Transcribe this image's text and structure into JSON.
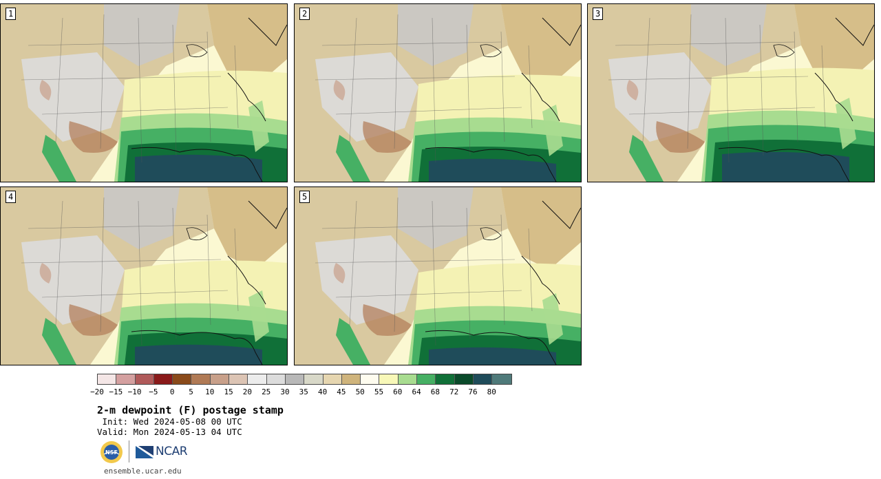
{
  "panels": [
    {
      "number": "1"
    },
    {
      "number": "2"
    },
    {
      "number": "3"
    },
    {
      "number": "4"
    },
    {
      "number": "5"
    }
  ],
  "colorbar": {
    "colors": [
      "#f4e6e6",
      "#d4a0a0",
      "#b05a5a",
      "#8a1a1a",
      "#8a4a1a",
      "#b07a55",
      "#c8a08a",
      "#dcc4b4",
      "#ececec",
      "#dcdcdc",
      "#b8b8b8",
      "#d8d8c8",
      "#e6d6b0",
      "#cfb47c",
      "#fefcef",
      "#f8f8b8",
      "#a8dc90",
      "#46b064",
      "#107038",
      "#0a4a2a",
      "#1f4c5a",
      "#4f7a7a"
    ],
    "ticks": [
      "-20",
      "-15",
      "-10",
      "-5",
      "0",
      "5",
      "10",
      "15",
      "20",
      "25",
      "30",
      "35",
      "40",
      "45",
      "50",
      "55",
      "60",
      "64",
      "68",
      "72",
      "76",
      "80"
    ]
  },
  "title": "2-m dewpoint (F) postage stamp",
  "init_text": " Init: Wed 2024-05-08 00 UTC",
  "valid_text": "Valid: Mon 2024-05-13 04 UTC",
  "logos": {
    "nsf": "NSF",
    "ncar": "NCAR"
  },
  "site": "ensemble.ucar.edu"
}
